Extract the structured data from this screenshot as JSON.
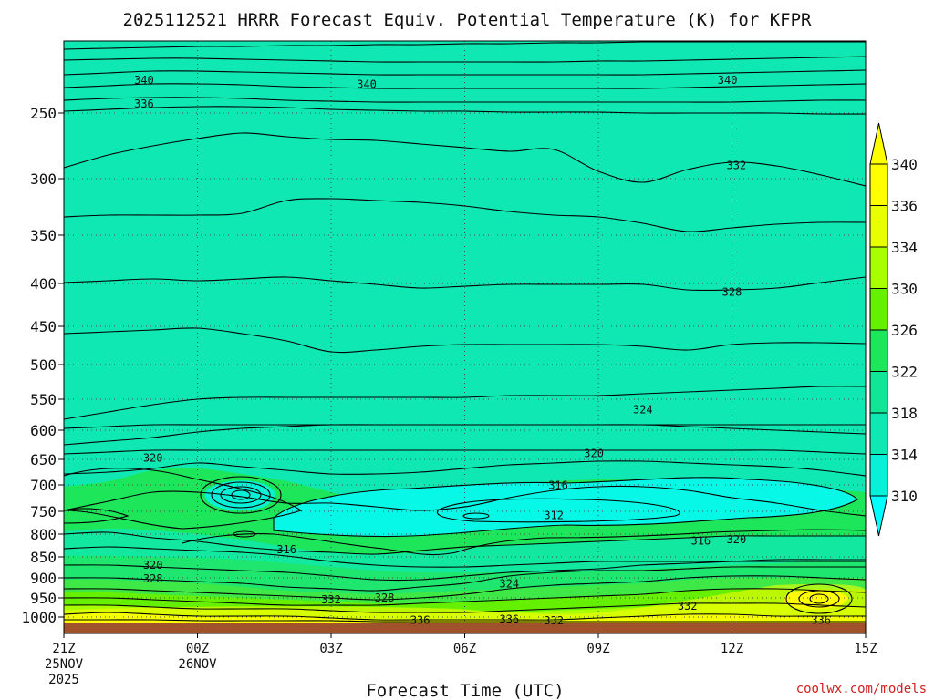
{
  "chart_data": {
    "type": "contour",
    "title": "2025112521 HRRR Forecast Equiv. Potential Temperature (K) for KFPR",
    "xlabel": "Forecast Time (UTC)",
    "ylabel": "",
    "x_ticks": [
      {
        "hour": 0,
        "label": "21Z",
        "sub": [
          "25NOV",
          "2025"
        ]
      },
      {
        "hour": 3,
        "label": "00Z",
        "sub": [
          "26NOV"
        ]
      },
      {
        "hour": 6,
        "label": "03Z",
        "sub": []
      },
      {
        "hour": 9,
        "label": "06Z",
        "sub": []
      },
      {
        "hour": 12,
        "label": "09Z",
        "sub": []
      },
      {
        "hour": 15,
        "label": "12Z",
        "sub": []
      },
      {
        "hour": 18,
        "label": "15Z",
        "sub": []
      }
    ],
    "xlim": [
      0,
      18
    ],
    "y_ticks": [
      250,
      300,
      350,
      400,
      450,
      500,
      550,
      600,
      650,
      700,
      750,
      800,
      850,
      900,
      950,
      1000
    ],
    "ylim": [
      1020,
      200
    ],
    "colorbar": {
      "ticks": [
        340,
        336,
        334,
        330,
        326,
        322,
        318,
        314,
        310
      ],
      "colors": [
        "#ffff00",
        "#e8ff00",
        "#a8ff00",
        "#64f000",
        "#1ee65a",
        "#10e696",
        "#10e8b4",
        "#08f0d8",
        "#00ffff"
      ]
    },
    "contour_labels": [
      {
        "hour": 1.8,
        "p": 225,
        "label": "340"
      },
      {
        "hour": 6.8,
        "p": 228,
        "label": "340"
      },
      {
        "hour": 14.9,
        "p": 225,
        "label": "340"
      },
      {
        "hour": 1.8,
        "p": 243,
        "label": "336"
      },
      {
        "hour": 15.1,
        "p": 290,
        "label": "332"
      },
      {
        "hour": 15.0,
        "p": 410,
        "label": "328"
      },
      {
        "hour": 13.0,
        "p": 567,
        "label": "324"
      },
      {
        "hour": 2.0,
        "p": 648,
        "label": "320"
      },
      {
        "hour": 11.9,
        "p": 640,
        "label": "320"
      },
      {
        "hour": 11.1,
        "p": 701,
        "label": "316"
      },
      {
        "hour": 11.0,
        "p": 759,
        "label": "312"
      },
      {
        "hour": 5.0,
        "p": 834,
        "label": "316"
      },
      {
        "hour": 14.3,
        "p": 815,
        "label": "316"
      },
      {
        "hour": 15.1,
        "p": 812,
        "label": "320"
      },
      {
        "hour": 2.0,
        "p": 870,
        "label": "320"
      },
      {
        "hour": 2.0,
        "p": 902,
        "label": "328"
      },
      {
        "hour": 10.0,
        "p": 915,
        "label": "324"
      },
      {
        "hour": 6.0,
        "p": 955,
        "label": "332"
      },
      {
        "hour": 7.2,
        "p": 950,
        "label": "328"
      },
      {
        "hour": 14.0,
        "p": 972,
        "label": "332"
      },
      {
        "hour": 8.0,
        "p": 1008,
        "label": "336"
      },
      {
        "hour": 10.0,
        "p": 1006,
        "label": "336"
      },
      {
        "hour": 11.0,
        "p": 1010,
        "label": "332"
      },
      {
        "hour": 17.0,
        "p": 1008,
        "label": "336"
      }
    ],
    "surface_color": "#a0522d"
  },
  "credit": "coolwx.com/models"
}
